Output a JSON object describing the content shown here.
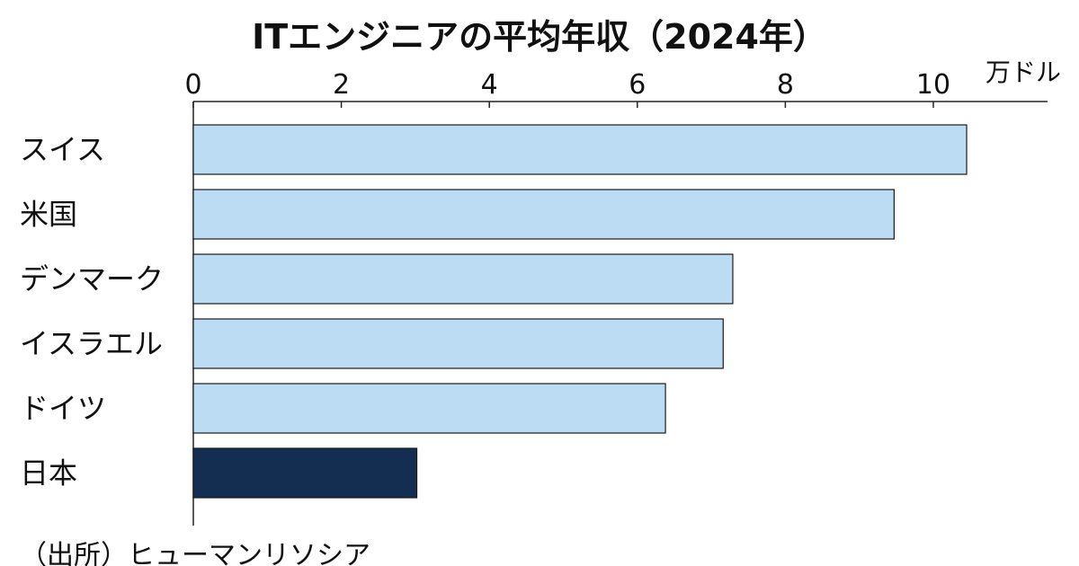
{
  "chart_data": {
    "type": "bar",
    "orientation": "horizontal",
    "title": "ITエンジニアの平均年収（2024年）",
    "unit": "万ドル",
    "source": "（出所）ヒューマンリソシア",
    "categories": [
      "スイス",
      "米国",
      "デンマーク",
      "イスラエル",
      "ドイツ",
      "日本"
    ],
    "values": [
      10.45,
      9.47,
      7.29,
      7.16,
      6.38,
      3.02
    ],
    "xlim": [
      0,
      11.5
    ],
    "xticks": [
      0,
      2,
      4,
      6,
      8,
      10
    ],
    "xtick_labels": [
      "0",
      "2",
      "4",
      "6",
      "8",
      "10"
    ],
    "axis_position": "top",
    "grid": false,
    "colors": {
      "default_bar": "#bcdcf3",
      "highlight_bar": "#132e50",
      "bar_stroke": "#1a1a1a",
      "axis": "#222222"
    },
    "highlight_category": "日本"
  }
}
